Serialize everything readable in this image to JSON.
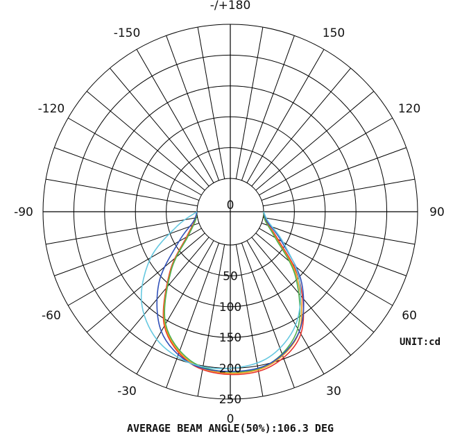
{
  "chart_data": {
    "type": "polar",
    "title": "",
    "unit_label": "UNIT:cd",
    "footer": "AVERAGE BEAM ANGLE(50%):106.3 DEG",
    "angle_labels": [
      {
        "angle": 0,
        "text": "0"
      },
      {
        "angle": 30,
        "text": "30"
      },
      {
        "angle": 60,
        "text": "60"
      },
      {
        "angle": 90,
        "text": "90"
      },
      {
        "angle": 120,
        "text": "120"
      },
      {
        "angle": 150,
        "text": "150"
      },
      {
        "angle": 180,
        "text": "-/+180"
      },
      {
        "angle": -150,
        "text": "-150"
      },
      {
        "angle": -120,
        "text": "-120"
      },
      {
        "angle": -90,
        "text": "-90"
      },
      {
        "angle": -60,
        "text": "-60"
      },
      {
        "angle": -30,
        "text": "-30"
      }
    ],
    "radial_labels": [
      "0",
      "50",
      "100",
      "150",
      "200",
      "250"
    ],
    "rmax": 250,
    "grid": true,
    "series": [
      {
        "color": "#e8322a",
        "points": [
          [
            90,
            0
          ],
          [
            75,
            6
          ],
          [
            60,
            35
          ],
          [
            45,
            105
          ],
          [
            30,
            175
          ],
          [
            15,
            205
          ],
          [
            0,
            210
          ],
          [
            -15,
            200
          ],
          [
            -30,
            160
          ],
          [
            -45,
            85
          ],
          [
            -60,
            28
          ],
          [
            -75,
            6
          ],
          [
            -90,
            0
          ]
        ]
      },
      {
        "color": "#f0a020",
        "points": [
          [
            90,
            0
          ],
          [
            75,
            5
          ],
          [
            60,
            32
          ],
          [
            45,
            100
          ],
          [
            30,
            170
          ],
          [
            15,
            202
          ],
          [
            0,
            208
          ],
          [
            -15,
            198
          ],
          [
            -30,
            158
          ],
          [
            -45,
            83
          ],
          [
            -60,
            26
          ],
          [
            -75,
            5
          ],
          [
            -90,
            0
          ]
        ]
      },
      {
        "color": "#4caf50",
        "points": [
          [
            90,
            0
          ],
          [
            75,
            5
          ],
          [
            60,
            30
          ],
          [
            45,
            96
          ],
          [
            30,
            165
          ],
          [
            15,
            200
          ],
          [
            0,
            206
          ],
          [
            -15,
            196
          ],
          [
            -30,
            156
          ],
          [
            -45,
            82
          ],
          [
            -60,
            25
          ],
          [
            -75,
            5
          ],
          [
            -90,
            0
          ]
        ]
      },
      {
        "color": "#3050b8",
        "points": [
          [
            90,
            0
          ],
          [
            75,
            8
          ],
          [
            60,
            42
          ],
          [
            45,
            110
          ],
          [
            30,
            170
          ],
          [
            15,
            200
          ],
          [
            0,
            205
          ],
          [
            -15,
            200
          ],
          [
            -30,
            170
          ],
          [
            -45,
            110
          ],
          [
            -60,
            42
          ],
          [
            -75,
            8
          ],
          [
            -90,
            0
          ]
        ]
      },
      {
        "color": "#66c8e0",
        "points": [
          [
            90,
            0
          ],
          [
            75,
            10
          ],
          [
            60,
            45
          ],
          [
            45,
            105
          ],
          [
            30,
            158
          ],
          [
            15,
            190
          ],
          [
            0,
            200
          ],
          [
            -15,
            200
          ],
          [
            -30,
            185
          ],
          [
            -45,
            150
          ],
          [
            -60,
            95
          ],
          [
            -75,
            35
          ],
          [
            -90,
            0
          ]
        ]
      }
    ]
  }
}
